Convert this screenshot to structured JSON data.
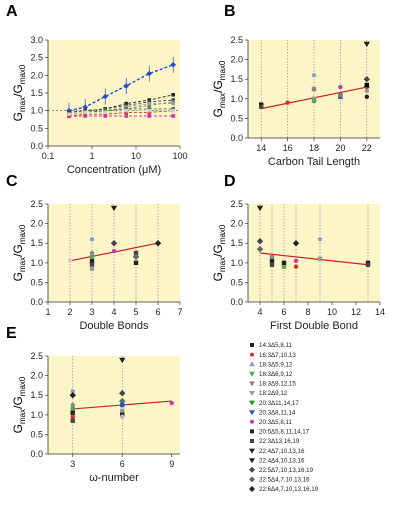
{
  "figure": {
    "colors": {
      "plot_bg": "#fbf5c8",
      "axis": "#333333",
      "fit_line": "#cc2222",
      "grid": "#888888"
    }
  },
  "chart_data": [
    {
      "panel": "A",
      "type": "line",
      "ylabel_main": "G",
      "ylabel_sub1": "max",
      "ylabel_sep": "/G",
      "ylabel_sub2": "max0",
      "xlabel": "Concentration (μM)",
      "xscale": "log",
      "xlim": [
        0.1,
        100
      ],
      "ylim": [
        0.0,
        3.0
      ],
      "xticks": [
        0.1,
        1,
        10,
        100
      ],
      "xtick_labels": [
        "0.1",
        "1",
        "10",
        "100"
      ],
      "yticks": [
        0.0,
        0.5,
        1.0,
        1.5,
        2.0,
        2.5,
        3.0
      ],
      "ytick_labels": [
        "0.0",
        "0.5",
        "1.0",
        "1.5",
        "2.0",
        "2.5",
        "3.0"
      ],
      "x": [
        0.3,
        0.7,
        2,
        6,
        20,
        70
      ],
      "series": [
        {
          "color": "#1f4fd6",
          "values": [
            1.0,
            1.1,
            1.4,
            1.7,
            2.05,
            2.3
          ]
        },
        {
          "color": "#222222",
          "values": [
            0.95,
            1.0,
            1.05,
            1.2,
            1.3,
            1.45
          ]
        },
        {
          "color": "#444444",
          "values": [
            0.95,
            1.0,
            1.05,
            1.15,
            1.25,
            1.3
          ]
        },
        {
          "color": "#777777",
          "values": [
            0.9,
            0.95,
            1.0,
            1.05,
            1.15,
            1.25
          ]
        },
        {
          "color": "#999999",
          "values": [
            0.9,
            0.95,
            1.0,
            1.1,
            1.2,
            1.2
          ]
        },
        {
          "color": "#2a8c2a",
          "values": [
            0.9,
            0.95,
            1.0,
            1.05,
            1.05,
            1.05
          ]
        },
        {
          "color": "#c23ab8",
          "values": [
            0.85,
            0.85,
            0.85,
            0.85,
            0.85,
            0.85
          ]
        },
        {
          "color": "#d43030",
          "values": [
            0.85,
            0.9,
            0.9,
            0.95,
            0.95,
            1.0
          ]
        },
        {
          "color": "#d9c2e8",
          "values": [
            0.9,
            0.95,
            0.95,
            1.0,
            1.0,
            1.0
          ]
        }
      ]
    },
    {
      "panel": "B",
      "type": "scatter",
      "ylabel_main": "G",
      "ylabel_sub1": "max",
      "ylabel_sep": "/G",
      "ylabel_sub2": "max0",
      "xlabel": "Carbon Tail Length",
      "xlim": [
        13,
        23
      ],
      "ylim": [
        0.0,
        2.5
      ],
      "xticks": [
        14,
        16,
        18,
        20,
        22
      ],
      "xtick_labels": [
        "14",
        "16",
        "18",
        "20",
        "22"
      ],
      "yticks": [
        0.0,
        0.5,
        1.0,
        1.5,
        2.0,
        2.5
      ],
      "ytick_labels": [
        "0.0",
        "0.5",
        "1.0",
        "1.5",
        "2.0",
        "2.5"
      ],
      "gridlines_x": [
        14,
        16,
        18,
        20,
        22
      ],
      "fit": [
        [
          14,
          0.75
        ],
        [
          22,
          1.3
        ]
      ],
      "points": [
        {
          "x": 14,
          "y": 0.85,
          "c": "#111111",
          "s": "square"
        },
        {
          "x": 14,
          "y": 0.8,
          "c": "#444444",
          "s": "square"
        },
        {
          "x": 16,
          "y": 0.9,
          "c": "#d43030",
          "s": "circle"
        },
        {
          "x": 18,
          "y": 1.6,
          "c": "#8aa0c8",
          "s": "circle"
        },
        {
          "x": 18,
          "y": 1.0,
          "c": "#999999",
          "s": "square"
        },
        {
          "x": 18,
          "y": 0.95,
          "c": "#5aa35a",
          "s": "square"
        },
        {
          "x": 18,
          "y": 1.25,
          "c": "#888888",
          "s": "square"
        },
        {
          "x": 20,
          "y": 1.05,
          "c": "#2255cc",
          "s": "square"
        },
        {
          "x": 20,
          "y": 1.3,
          "c": "#c23ab8",
          "s": "circle"
        },
        {
          "x": 20,
          "y": 1.1,
          "c": "#777777",
          "s": "square"
        },
        {
          "x": 22,
          "y": 2.4,
          "c": "#222222",
          "s": "tri-down"
        },
        {
          "x": 22,
          "y": 1.5,
          "c": "#444444",
          "s": "diamond"
        },
        {
          "x": 22,
          "y": 1.3,
          "c": "#666666",
          "s": "diamond"
        },
        {
          "x": 22,
          "y": 1.2,
          "c": "#999999",
          "s": "circle"
        },
        {
          "x": 22,
          "y": 1.05,
          "c": "#222222",
          "s": "circle"
        },
        {
          "x": 22,
          "y": 1.35,
          "c": "#000000",
          "s": "square"
        }
      ]
    },
    {
      "panel": "C",
      "type": "scatter",
      "ylabel_main": "G",
      "ylabel_sub1": "max",
      "ylabel_sep": "/G",
      "ylabel_sub2": "max0",
      "xlabel": "Double Bonds",
      "xlim": [
        1,
        7
      ],
      "ylim": [
        0.0,
        2.5
      ],
      "xticks": [
        1,
        2,
        3,
        4,
        5,
        6,
        7
      ],
      "xtick_labels": [
        "1",
        "2",
        "3",
        "4",
        "5",
        "6",
        "7"
      ],
      "yticks": [
        0.0,
        0.5,
        1.0,
        1.5,
        2.0,
        2.5
      ],
      "ytick_labels": [
        "0.0",
        "0.5",
        "1.0",
        "1.5",
        "2.0",
        "2.5"
      ],
      "gridlines_x": [
        2,
        3,
        4,
        5,
        6
      ],
      "fit": [
        [
          2,
          1.05
        ],
        [
          6,
          1.5
        ]
      ],
      "points": [
        {
          "x": 2,
          "y": 1.05,
          "c": "#d9c2e8",
          "s": "circle"
        },
        {
          "x": 3,
          "y": 1.6,
          "c": "#8aa0c8",
          "s": "circle"
        },
        {
          "x": 3,
          "y": 1.05,
          "c": "#222222",
          "s": "square"
        },
        {
          "x": 3,
          "y": 0.95,
          "c": "#444444",
          "s": "square"
        },
        {
          "x": 3,
          "y": 0.85,
          "c": "#999999",
          "s": "square"
        },
        {
          "x": 3,
          "y": 1.15,
          "c": "#5aa35a",
          "s": "square"
        },
        {
          "x": 3,
          "y": 1.25,
          "c": "#888888",
          "s": "circle"
        },
        {
          "x": 4,
          "y": 2.4,
          "c": "#222222",
          "s": "tri-down"
        },
        {
          "x": 4,
          "y": 1.5,
          "c": "#444444",
          "s": "diamond"
        },
        {
          "x": 4,
          "y": 1.3,
          "c": "#c23ab8",
          "s": "circle"
        },
        {
          "x": 5,
          "y": 1.25,
          "c": "#444444",
          "s": "square"
        },
        {
          "x": 5,
          "y": 1.0,
          "c": "#222222",
          "s": "square"
        },
        {
          "x": 5,
          "y": 1.15,
          "c": "#666666",
          "s": "diamond"
        },
        {
          "x": 6,
          "y": 1.5,
          "c": "#222222",
          "s": "diamond"
        }
      ]
    },
    {
      "panel": "D",
      "type": "scatter",
      "ylabel_main": "G",
      "ylabel_sub1": "max",
      "ylabel_sep": "/G",
      "ylabel_sub2": "max0",
      "xlabel": "First Double Bond",
      "xlim": [
        3,
        14
      ],
      "ylim": [
        0.0,
        2.5
      ],
      "xticks": [
        4,
        6,
        8,
        10,
        12,
        14
      ],
      "xtick_labels": [
        "4",
        "6",
        "8",
        "10",
        "12",
        "14"
      ],
      "yticks": [
        0.0,
        0.5,
        1.0,
        1.5,
        2.0,
        2.5
      ],
      "ytick_labels": [
        "0.0",
        "0.5",
        "1.0",
        "1.5",
        "2.0",
        "2.5"
      ],
      "gridlines_x": [
        4,
        5,
        6,
        7,
        9,
        13
      ],
      "fit": [
        [
          4,
          1.25
        ],
        [
          13,
          0.95
        ]
      ],
      "points": [
        {
          "x": 4,
          "y": 2.4,
          "c": "#222222",
          "s": "tri-down"
        },
        {
          "x": 4,
          "y": 1.55,
          "c": "#444444",
          "s": "diamond"
        },
        {
          "x": 4,
          "y": 1.35,
          "c": "#666666",
          "s": "diamond"
        },
        {
          "x": 5,
          "y": 1.05,
          "c": "#222222",
          "s": "square"
        },
        {
          "x": 5,
          "y": 0.95,
          "c": "#444444",
          "s": "square"
        },
        {
          "x": 5,
          "y": 1.15,
          "c": "#888888",
          "s": "square"
        },
        {
          "x": 6,
          "y": 0.9,
          "c": "#5aa35a",
          "s": "square"
        },
        {
          "x": 6,
          "y": 1.0,
          "c": "#222222",
          "s": "square"
        },
        {
          "x": 7,
          "y": 1.5,
          "c": "#222222",
          "s": "diamond"
        },
        {
          "x": 7,
          "y": 0.9,
          "c": "#d43030",
          "s": "circle"
        },
        {
          "x": 7,
          "y": 1.05,
          "c": "#c23ab8",
          "s": "circle"
        },
        {
          "x": 9,
          "y": 1.6,
          "c": "#8aa0c8",
          "s": "circle"
        },
        {
          "x": 9,
          "y": 1.1,
          "c": "#999999",
          "s": "square"
        },
        {
          "x": 13,
          "y": 1.0,
          "c": "#222222",
          "s": "square"
        },
        {
          "x": 13,
          "y": 0.95,
          "c": "#444444",
          "s": "square"
        }
      ]
    },
    {
      "panel": "E",
      "type": "scatter",
      "ylabel_main": "G",
      "ylabel_sub1": "max",
      "ylabel_sep": "/G",
      "ylabel_sub2": "max0",
      "xlabel": "ω-number",
      "xlim": [
        1.5,
        9.5
      ],
      "ylim": [
        0.0,
        2.5
      ],
      "xticks": [
        3,
        6,
        9
      ],
      "xtick_labels": [
        "3",
        "6",
        "9"
      ],
      "yticks": [
        0.0,
        0.5,
        1.0,
        1.5,
        2.0,
        2.5
      ],
      "ytick_labels": [
        "0.0",
        "0.5",
        "1.0",
        "1.5",
        "2.0",
        "2.5"
      ],
      "gridlines_x": [
        3,
        6
      ],
      "fit": [
        [
          3,
          1.15
        ],
        [
          9,
          1.35
        ]
      ],
      "points": [
        {
          "x": 3,
          "y": 1.6,
          "c": "#8aa0c8",
          "s": "circle"
        },
        {
          "x": 3,
          "y": 1.5,
          "c": "#222222",
          "s": "diamond"
        },
        {
          "x": 3,
          "y": 1.25,
          "c": "#888888",
          "s": "circle"
        },
        {
          "x": 3,
          "y": 1.15,
          "c": "#5aa35a",
          "s": "square"
        },
        {
          "x": 3,
          "y": 1.05,
          "c": "#222222",
          "s": "square"
        },
        {
          "x": 3,
          "y": 0.95,
          "c": "#d43030",
          "s": "circle"
        },
        {
          "x": 3,
          "y": 0.85,
          "c": "#444444",
          "s": "square"
        },
        {
          "x": 6,
          "y": 2.4,
          "c": "#222222",
          "s": "tri-down"
        },
        {
          "x": 6,
          "y": 1.55,
          "c": "#444444",
          "s": "diamond"
        },
        {
          "x": 6,
          "y": 1.35,
          "c": "#666666",
          "s": "diamond"
        },
        {
          "x": 6,
          "y": 1.25,
          "c": "#2255cc",
          "s": "square"
        },
        {
          "x": 6,
          "y": 1.1,
          "c": "#999999",
          "s": "square"
        },
        {
          "x": 6,
          "y": 1.0,
          "c": "#222222",
          "s": "square"
        },
        {
          "x": 6,
          "y": 0.95,
          "c": "#bbbbbb",
          "s": "circle"
        },
        {
          "x": 9,
          "y": 1.3,
          "c": "#c23ab8",
          "s": "circle"
        }
      ]
    }
  ],
  "legend": [
    {
      "label": "14:3Δ5,8,11",
      "c": "#222222",
      "s": "square"
    },
    {
      "label": "16:3Δ7,10,13",
      "c": "#d43030",
      "s": "circle"
    },
    {
      "label": "18:3Δ5,9,12",
      "c": "#8aa0c8",
      "s": "tri-up"
    },
    {
      "label": "18:3Δ6,9,12",
      "c": "#5aa35a",
      "s": "tri-down"
    },
    {
      "label": "18:3Δ9,12,15",
      "c": "#888888",
      "s": "tri-down"
    },
    {
      "label": "18:2Δ9,12",
      "c": "#999999",
      "s": "tri-down"
    },
    {
      "label": "20:3Δ11,14,17",
      "c": "#2a8c2a",
      "s": "tri-down"
    },
    {
      "label": "20:3Δ8,11,14",
      "c": "#2255cc",
      "s": "tri-down"
    },
    {
      "label": "20:3Δ5,8,11",
      "c": "#c23ab8",
      "s": "circle"
    },
    {
      "label": "20:5Δ5,8,11,14,17",
      "c": "#222222",
      "s": "square"
    },
    {
      "label": "22:3Δ13,16,19",
      "c": "#444444",
      "s": "square"
    },
    {
      "label": "22:4Δ7,10,13,16",
      "c": "#222222",
      "s": "tri-down"
    },
    {
      "label": "22:4Δ4,10,13,16",
      "c": "#222222",
      "s": "tri-down"
    },
    {
      "label": "22:5Δ7,10,13,16,19",
      "c": "#444444",
      "s": "diamond"
    },
    {
      "label": "22:5Δ4,7,10,13,16",
      "c": "#666666",
      "s": "diamond"
    },
    {
      "label": "22:6Δ4,7,10,13,16,19",
      "c": "#222222",
      "s": "diamond"
    }
  ]
}
